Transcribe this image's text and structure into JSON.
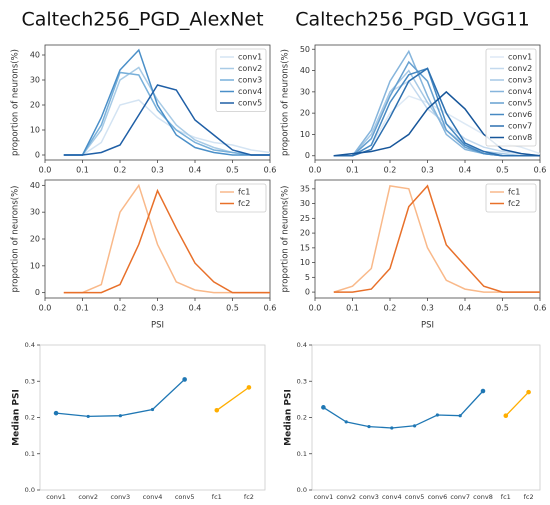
{
  "chart_data": [
    {
      "type": "line",
      "title": "Caltech256_PGD_AlexNet",
      "ylabel": "proportion of neurons(%)",
      "x": [
        0.05,
        0.1,
        0.15,
        0.2,
        0.25,
        0.3,
        0.35,
        0.4,
        0.45,
        0.5,
        0.55,
        0.6
      ],
      "xlim": [
        0,
        0.6
      ],
      "xticks": [
        {
          "value": 0,
          "label": "0.0"
        },
        0.1,
        0.2,
        0.3,
        0.4,
        0.5,
        0.6
      ],
      "ylim": [
        -2,
        44
      ],
      "yticks": [
        0,
        10,
        20,
        30,
        40
      ],
      "legend": "upper right",
      "series": [
        {
          "name": "conv1",
          "color": "#d4e4f3",
          "values": [
            0,
            0,
            5,
            20,
            22,
            15,
            10,
            7,
            5,
            4,
            2,
            1
          ]
        },
        {
          "name": "conv2",
          "color": "#a8cbe6",
          "values": [
            0,
            0,
            10,
            30,
            35,
            22,
            12,
            6,
            3,
            1,
            0,
            0
          ]
        },
        {
          "name": "conv3",
          "color": "#78b0da",
          "values": [
            0,
            0,
            12,
            33,
            32,
            18,
            10,
            5,
            2,
            1,
            0,
            0
          ]
        },
        {
          "name": "conv4",
          "color": "#4a8fc8",
          "values": [
            0,
            0,
            15,
            34,
            42,
            20,
            8,
            3,
            1,
            0,
            0,
            0
          ]
        },
        {
          "name": "conv5",
          "color": "#1f5fa6",
          "values": [
            0,
            0,
            1,
            4,
            16,
            28,
            26,
            14,
            8,
            2,
            0,
            0
          ]
        }
      ]
    },
    {
      "type": "line",
      "ylabel": "proportion of neurons(%)",
      "xlabel": "PSI",
      "x": [
        0.05,
        0.1,
        0.15,
        0.2,
        0.25,
        0.3,
        0.35,
        0.4,
        0.45,
        0.5,
        0.55,
        0.6
      ],
      "xlim": [
        0,
        0.6
      ],
      "xticks": [
        {
          "value": 0,
          "label": "0.0"
        },
        0.1,
        0.2,
        0.3,
        0.4,
        0.5,
        0.6
      ],
      "ylim": [
        -2,
        42
      ],
      "yticks": [
        0,
        10,
        20,
        30,
        40
      ],
      "legend": "upper right",
      "series": [
        {
          "name": "fc1",
          "color": "#f9b98a",
          "values": [
            0,
            0,
            3,
            30,
            40,
            18,
            4,
            1,
            0,
            0,
            0,
            0
          ]
        },
        {
          "name": "fc2",
          "color": "#e8702a",
          "values": [
            0,
            0,
            0,
            3,
            18,
            38,
            24,
            11,
            4,
            0,
            0,
            0
          ]
        }
      ]
    },
    {
      "type": "median",
      "ylabel": "Median PSI",
      "categories": [
        "conv1",
        "conv2",
        "conv3",
        "conv4",
        "conv5",
        "fc1",
        "fc2"
      ],
      "ylim": [
        0,
        0.4
      ],
      "yticks": [
        {
          "value": 0,
          "label": "0.0"
        },
        0.1,
        0.2,
        0.3,
        0.4
      ],
      "series": [
        {
          "color": "#1f77b4",
          "values": [
            0.212,
            0.203,
            0.205,
            0.222,
            0.305,
            null,
            null
          ]
        },
        {
          "color": "#ffae00",
          "values": [
            null,
            null,
            null,
            null,
            null,
            0.22,
            0.283
          ]
        }
      ]
    },
    {
      "type": "line",
      "title": "Caltech256_PGD_VGG11",
      "ylabel": "proportion of neurons(%)",
      "x": [
        0.05,
        0.1,
        0.15,
        0.2,
        0.25,
        0.3,
        0.35,
        0.4,
        0.45,
        0.5,
        0.55,
        0.6
      ],
      "xlim": [
        0,
        0.6
      ],
      "xticks": [
        {
          "value": 0,
          "label": "0.0"
        },
        0.1,
        0.2,
        0.3,
        0.4,
        0.5,
        0.6
      ],
      "ylim": [
        -2,
        52
      ],
      "yticks": [
        0,
        10,
        20,
        30,
        40,
        50
      ],
      "legend": "upper right",
      "series": [
        {
          "name": "conv1",
          "color": "#dde9f5",
          "values": [
            0,
            0,
            5,
            20,
            28,
            25,
            20,
            15,
            10,
            6,
            4,
            1
          ]
        },
        {
          "name": "conv2",
          "color": "#c3d9ee",
          "values": [
            0,
            0,
            8,
            30,
            35,
            22,
            15,
            8,
            4,
            2,
            1,
            0
          ]
        },
        {
          "name": "conv3",
          "color": "#a5c8e5",
          "values": [
            0,
            0,
            10,
            30,
            40,
            25,
            12,
            5,
            2,
            1,
            0,
            0
          ]
        },
        {
          "name": "conv4",
          "color": "#86b5dc",
          "values": [
            0,
            0,
            12,
            35,
            49,
            28,
            10,
            3,
            1,
            0,
            0,
            0
          ]
        },
        {
          "name": "conv5",
          "color": "#66a0d0",
          "values": [
            0,
            0,
            8,
            28,
            44,
            35,
            12,
            4,
            1,
            0,
            0,
            0
          ]
        },
        {
          "name": "conv6",
          "color": "#4789c2",
          "values": [
            0,
            0,
            5,
            25,
            38,
            41,
            15,
            5,
            1,
            0,
            0,
            0
          ]
        },
        {
          "name": "conv7",
          "color": "#2d70b0",
          "values": [
            0,
            0,
            3,
            18,
            35,
            41,
            20,
            6,
            2,
            0,
            0,
            0
          ]
        },
        {
          "name": "conv8",
          "color": "#17569a",
          "values": [
            0,
            1,
            2,
            4,
            10,
            22,
            30,
            22,
            10,
            3,
            1,
            0
          ]
        }
      ]
    },
    {
      "type": "line",
      "ylabel": "proportion of neurons(%)",
      "xlabel": "PSI",
      "x": [
        0.05,
        0.1,
        0.15,
        0.2,
        0.25,
        0.3,
        0.35,
        0.4,
        0.45,
        0.5,
        0.55,
        0.6
      ],
      "xlim": [
        0,
        0.6
      ],
      "xticks": [
        {
          "value": 0,
          "label": "0.0"
        },
        0.1,
        0.2,
        0.3,
        0.4,
        0.5,
        0.6
      ],
      "ylim": [
        -2,
        38
      ],
      "yticks": [
        0,
        5,
        10,
        15,
        20,
        25,
        30,
        35
      ],
      "legend": "upper right",
      "series": [
        {
          "name": "fc1",
          "color": "#f9b98a",
          "values": [
            0,
            2,
            8,
            36,
            35,
            15,
            4,
            1,
            0,
            0,
            0,
            0
          ]
        },
        {
          "name": "fc2",
          "color": "#e8702a",
          "values": [
            0,
            0,
            1,
            8,
            29,
            36,
            16,
            9,
            2,
            0,
            0,
            0
          ]
        }
      ]
    },
    {
      "type": "median",
      "ylabel": "Median PSI",
      "categories": [
        "conv1",
        "conv2",
        "conv3",
        "conv4",
        "conv5",
        "conv6",
        "conv7",
        "conv8",
        "fc1",
        "fc2"
      ],
      "ylim": [
        0,
        0.4
      ],
      "yticks": [
        {
          "value": 0,
          "label": "0.0"
        },
        0.1,
        0.2,
        0.3,
        0.4
      ],
      "series": [
        {
          "color": "#1f77b4",
          "values": [
            0.228,
            0.188,
            0.175,
            0.171,
            0.177,
            0.207,
            0.205,
            0.273,
            null,
            null
          ]
        },
        {
          "color": "#ffae00",
          "values": [
            null,
            null,
            null,
            null,
            null,
            null,
            null,
            null,
            0.205,
            0.27
          ]
        }
      ]
    }
  ]
}
